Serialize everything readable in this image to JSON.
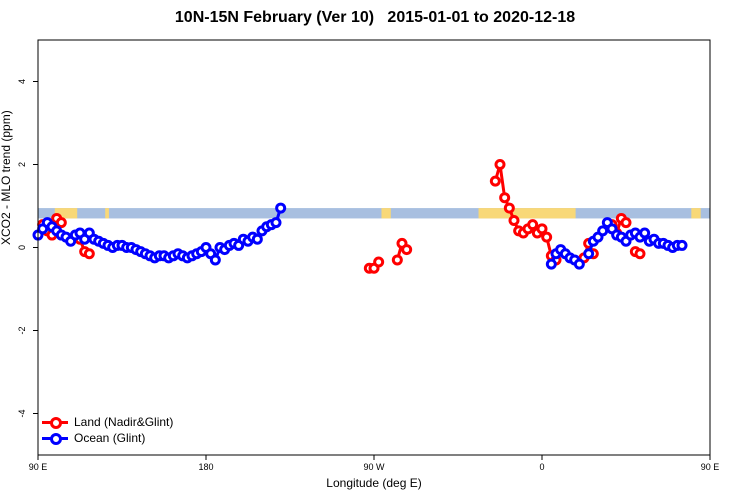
{
  "chart_data": {
    "type": "line",
    "title": "10N-15N February (Ver 10)   2015-01-01 to 2020-12-18",
    "xlabel": "Longitude (deg E)",
    "ylabel": "XCO2 - MLO trend (ppm)",
    "xlim": [
      90,
      450
    ],
    "ylim": [
      -5,
      5
    ],
    "x_ticks": [
      {
        "value": 90,
        "label": "90 E"
      },
      {
        "value": 180,
        "label": "180"
      },
      {
        "value": 270,
        "label": "90 W"
      },
      {
        "value": 360,
        "label": "0"
      },
      {
        "value": 450,
        "label": "90 E"
      },
      {
        "value": 540,
        "label": "180"
      }
    ],
    "y_ticks": [
      {
        "value": -4,
        "label": "-4"
      },
      {
        "value": -2,
        "label": "-2"
      },
      {
        "value": 0,
        "label": "0"
      },
      {
        "value": 2,
        "label": "2"
      },
      {
        "value": 4,
        "label": "4"
      }
    ],
    "grid": false,
    "legend_position": "bottom-left",
    "land_mask_band": {
      "ymin": 0.7,
      "ymax": 0.95,
      "ocean_color": "#a8bfe0",
      "land_color": "#f8d878"
    },
    "land_segments": [
      [
        99,
        111
      ],
      [
        126,
        128
      ],
      [
        274,
        279
      ],
      [
        326,
        378
      ],
      [
        440,
        445
      ],
      [
        461,
        470
      ],
      [
        477,
        479
      ]
    ],
    "series": [
      {
        "name": "Land (Nadir&Glint)",
        "color": "#ff0000",
        "segments": [
          [
            [
              92.5,
              0.55
            ],
            [
              95,
              0.4
            ],
            [
              97.5,
              0.3
            ],
            [
              100,
              0.7
            ],
            [
              102.5,
              0.6
            ]
          ],
          [
            [
              112.5,
              0.2
            ],
            [
              115,
              -0.1
            ],
            [
              117.5,
              -0.15
            ]
          ],
          [
            [
              267.5,
              -0.5
            ],
            [
              270,
              -0.5
            ],
            [
              272.5,
              -0.35
            ]
          ],
          [
            [
              282.5,
              -0.3
            ],
            [
              285,
              0.1
            ],
            [
              287.5,
              -0.05
            ]
          ],
          [
            [
              335,
              1.6
            ],
            [
              337.5,
              2.0
            ],
            [
              340,
              1.2
            ],
            [
              342.5,
              0.95
            ],
            [
              345,
              0.65
            ],
            [
              347.5,
              0.4
            ],
            [
              350,
              0.35
            ],
            [
              352.5,
              0.45
            ],
            [
              355,
              0.55
            ],
            [
              357.5,
              0.35
            ],
            [
              360,
              0.45
            ],
            [
              362.5,
              0.25
            ],
            [
              365,
              -0.2
            ],
            [
              367.5,
              -0.3
            ]
          ],
          [
            [
              380,
              -0.35
            ],
            [
              382.5,
              -0.25
            ],
            [
              385,
              0.1
            ],
            [
              387.5,
              -0.15
            ]
          ],
          [
            [
              397.5,
              0.55
            ],
            [
              400,
              0.35
            ],
            [
              402.5,
              0.7
            ],
            [
              405,
              0.6
            ]
          ],
          [
            [
              410,
              -0.1
            ],
            [
              412.5,
              -0.15
            ]
          ]
        ]
      },
      {
        "name": "Ocean (Glint)",
        "color": "#0000ff",
        "segments": [
          [
            [
              90,
              0.3
            ],
            [
              92.5,
              0.45
            ],
            [
              95,
              0.6
            ],
            [
              97.5,
              0.5
            ],
            [
              100,
              0.4
            ],
            [
              102.5,
              0.3
            ],
            [
              105,
              0.25
            ],
            [
              107.5,
              0.15
            ],
            [
              110,
              0.3
            ],
            [
              112.5,
              0.35
            ],
            [
              115,
              0.2
            ],
            [
              117.5,
              0.35
            ],
            [
              120,
              0.2
            ],
            [
              122.5,
              0.15
            ],
            [
              125,
              0.1
            ],
            [
              127.5,
              0.05
            ],
            [
              130,
              0.0
            ],
            [
              132.5,
              0.05
            ],
            [
              135,
              0.05
            ],
            [
              137.5,
              0.0
            ],
            [
              140,
              0.0
            ],
            [
              142.5,
              -0.05
            ],
            [
              145,
              -0.1
            ],
            [
              147.5,
              -0.15
            ],
            [
              150,
              -0.2
            ],
            [
              152.5,
              -0.25
            ],
            [
              155,
              -0.2
            ],
            [
              157.5,
              -0.2
            ],
            [
              160,
              -0.25
            ],
            [
              162.5,
              -0.2
            ],
            [
              165,
              -0.15
            ],
            [
              167.5,
              -0.2
            ],
            [
              170,
              -0.25
            ],
            [
              172.5,
              -0.2
            ],
            [
              175,
              -0.15
            ],
            [
              177.5,
              -0.1
            ],
            [
              180,
              0.0
            ],
            [
              182.5,
              -0.15
            ],
            [
              185,
              -0.3
            ],
            [
              187.5,
              0.0
            ],
            [
              190,
              -0.05
            ],
            [
              192.5,
              0.05
            ],
            [
              195,
              0.1
            ],
            [
              197.5,
              0.05
            ],
            [
              200,
              0.2
            ],
            [
              202.5,
              0.15
            ],
            [
              205,
              0.25
            ],
            [
              207.5,
              0.2
            ],
            [
              210,
              0.4
            ],
            [
              212.5,
              0.5
            ],
            [
              215,
              0.55
            ],
            [
              217.5,
              0.6
            ],
            [
              220,
              0.95
            ]
          ],
          [
            [
              365,
              -0.4
            ],
            [
              367.5,
              -0.15
            ],
            [
              370,
              -0.05
            ],
            [
              372.5,
              -0.15
            ],
            [
              375,
              -0.25
            ],
            [
              377.5,
              -0.3
            ],
            [
              380,
              -0.4
            ]
          ],
          [
            [
              385,
              -0.15
            ],
            [
              387.5,
              0.15
            ],
            [
              390,
              0.25
            ],
            [
              392.5,
              0.4
            ],
            [
              395,
              0.6
            ],
            [
              397.5,
              0.45
            ],
            [
              400,
              0.3
            ],
            [
              402.5,
              0.25
            ],
            [
              405,
              0.15
            ],
            [
              407.5,
              0.3
            ],
            [
              410,
              0.35
            ],
            [
              412.5,
              0.25
            ],
            [
              415,
              0.35
            ],
            [
              417.5,
              0.15
            ],
            [
              420,
              0.2
            ],
            [
              422.5,
              0.1
            ],
            [
              425,
              0.1
            ],
            [
              427.5,
              0.05
            ],
            [
              430,
              0.0
            ],
            [
              432.5,
              0.05
            ],
            [
              435,
              0.05
            ]
          ]
        ]
      }
    ]
  }
}
